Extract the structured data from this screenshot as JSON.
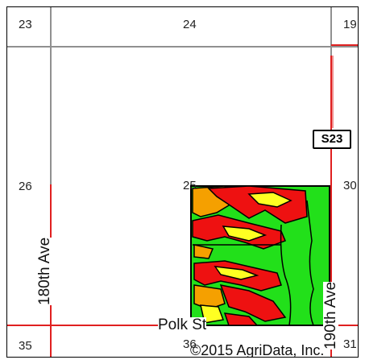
{
  "map": {
    "sections": {
      "s23": "23",
      "s24": "24",
      "s19": "19",
      "s26": "26",
      "s25": "25",
      "s30": "30",
      "s35": "35",
      "s36": "36",
      "s31": "31"
    },
    "roads": {
      "road_180": "180th Ave",
      "road_190": "190th Ave",
      "road_polk": "Polk St"
    },
    "highway_shield": "S23",
    "credit": "©2015 AgriData, Inc.",
    "colors": {
      "road_red": "#e02020",
      "road_gray": "#909090",
      "zone_green": "#22e01a",
      "zone_red": "#ee1111",
      "zone_orange": "#f5a000",
      "zone_yellow": "#ffff22"
    }
  }
}
